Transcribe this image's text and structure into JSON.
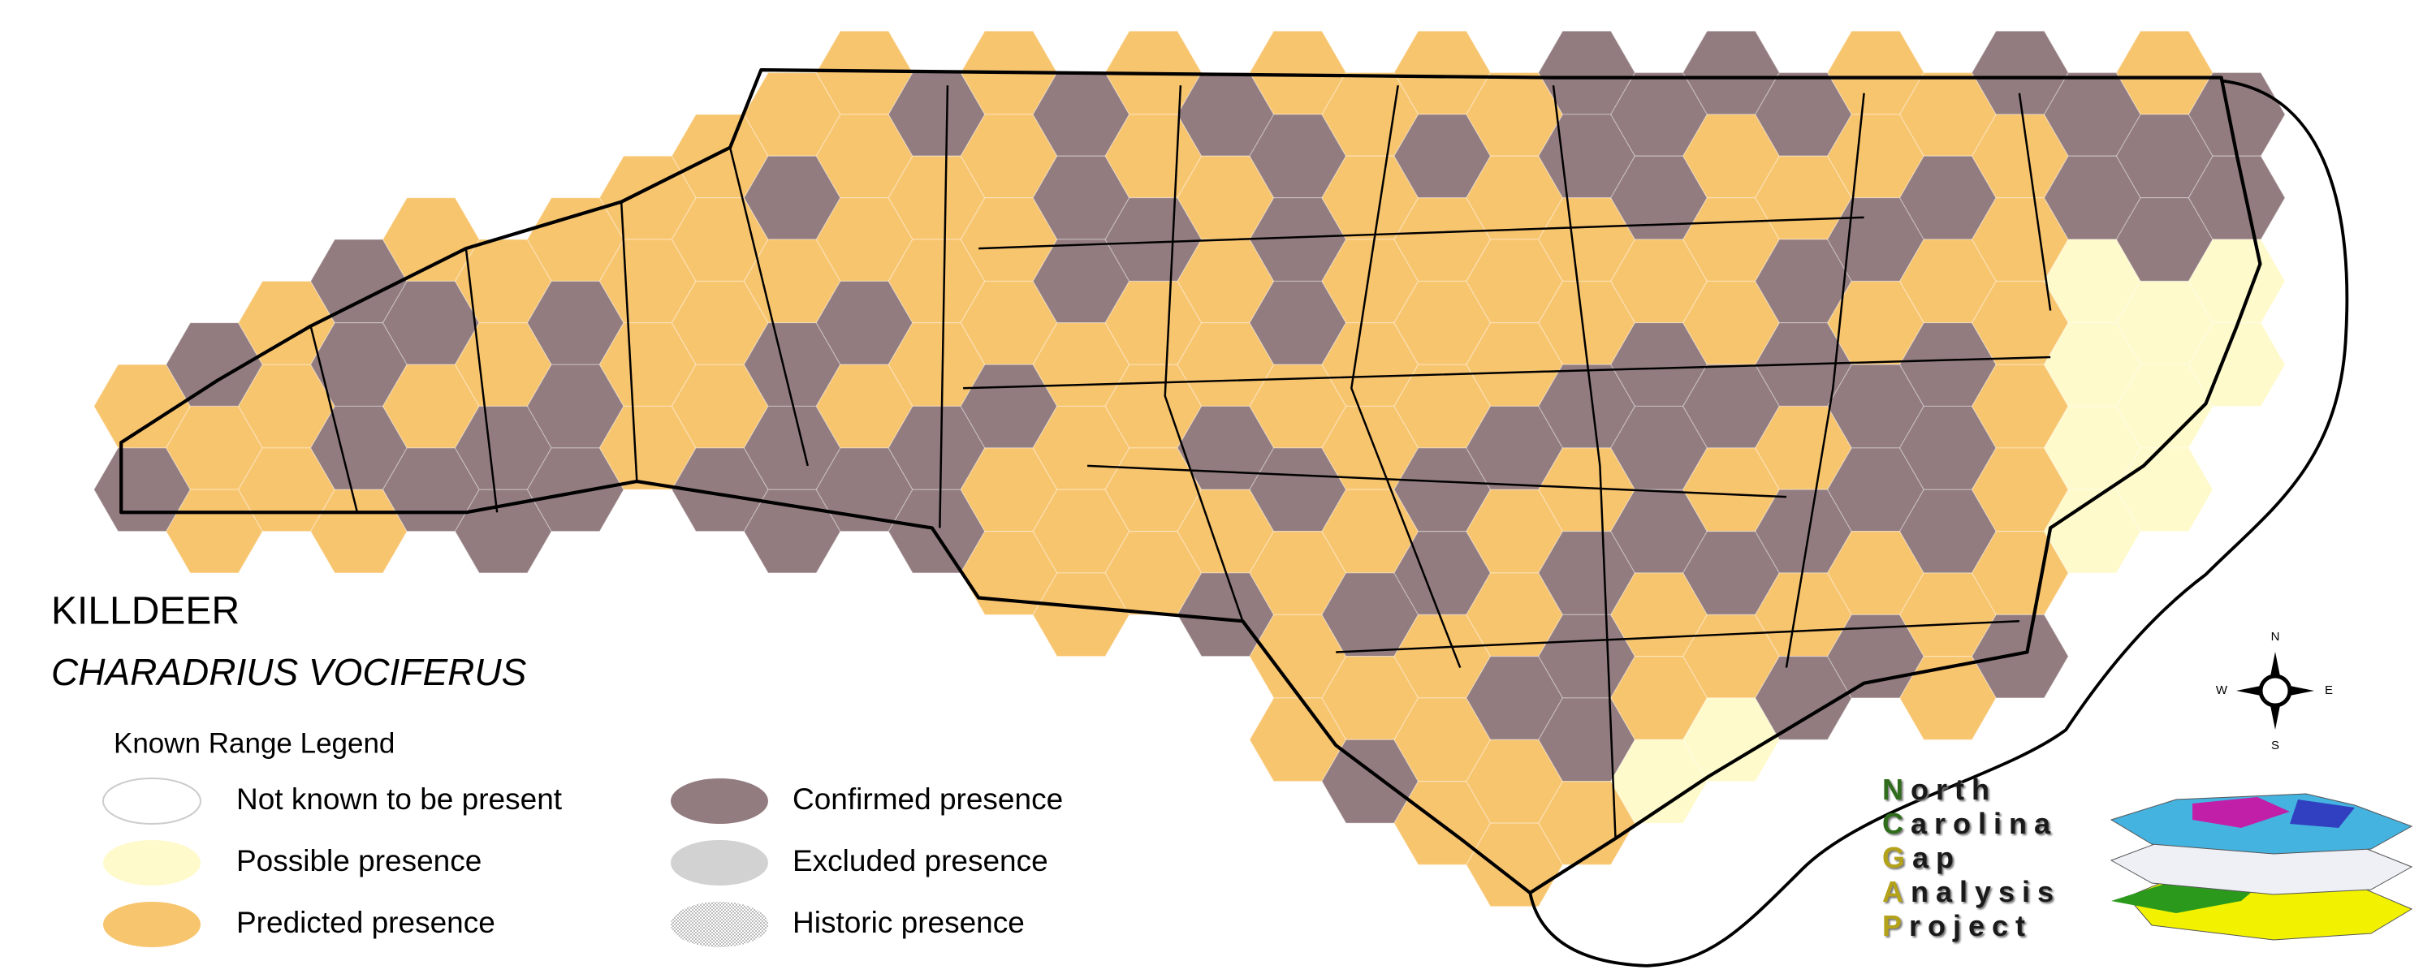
{
  "map": {
    "common_name": "KILLDEER",
    "scientific_name": "CHARADRIUS VOCIFERUS"
  },
  "legend": {
    "title": "Known Range Legend",
    "items": [
      {
        "label": "Not known to be present",
        "color": "#ffffff"
      },
      {
        "label": "Possible presence",
        "color": "#fefacb"
      },
      {
        "label": "Predicted presence",
        "color": "#f8c56f"
      },
      {
        "label": "Confirmed presence",
        "color": "#927c7f"
      },
      {
        "label": "Excluded presence",
        "color": "#d2d2d2"
      },
      {
        "label": "Historic presence",
        "color": "#8a8a8a"
      }
    ]
  },
  "compass": {
    "north": "N",
    "south": "S",
    "east": "E",
    "west": "W"
  },
  "logo": {
    "words": [
      "North",
      "Carolina",
      "Gap",
      "Analysis",
      "Project"
    ]
  }
}
